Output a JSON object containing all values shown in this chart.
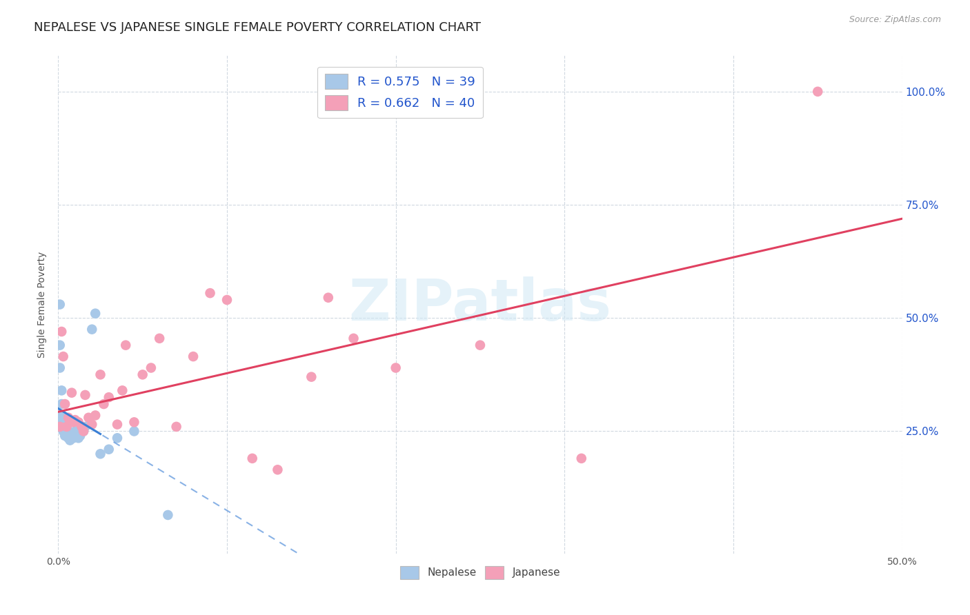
{
  "title": "NEPALESE VS JAPANESE SINGLE FEMALE POVERTY CORRELATION CHART",
  "source": "Source: ZipAtlas.com",
  "ylabel": "Single Female Poverty",
  "xlim": [
    0.0,
    0.5
  ],
  "ylim": [
    -0.02,
    1.08
  ],
  "xtick_major": [
    0.0,
    0.5
  ],
  "xtick_major_labels": [
    "0.0%",
    "50.0%"
  ],
  "xtick_minor": [
    0.1,
    0.2,
    0.3,
    0.4
  ],
  "ytick_values": [
    0.25,
    0.5,
    0.75,
    1.0
  ],
  "ytick_labels": [
    "25.0%",
    "50.0%",
    "75.0%",
    "100.0%"
  ],
  "nepalese_color": "#a8c8e8",
  "japanese_color": "#f4a0b8",
  "nepalese_line_color": "#3a7fd5",
  "japanese_line_color": "#e04060",
  "R_nepalese": 0.575,
  "N_nepalese": 39,
  "R_japanese": 0.662,
  "N_japanese": 40,
  "legend_text_color": "#2255cc",
  "nepalese_x": [
    0.001,
    0.001,
    0.001,
    0.002,
    0.002,
    0.002,
    0.002,
    0.003,
    0.003,
    0.003,
    0.003,
    0.004,
    0.004,
    0.004,
    0.005,
    0.005,
    0.005,
    0.005,
    0.006,
    0.006,
    0.006,
    0.007,
    0.007,
    0.008,
    0.008,
    0.009,
    0.01,
    0.011,
    0.012,
    0.013,
    0.015,
    0.016,
    0.02,
    0.022,
    0.025,
    0.03,
    0.035,
    0.045,
    0.065
  ],
  "nepalese_y": [
    0.53,
    0.44,
    0.39,
    0.34,
    0.31,
    0.285,
    0.27,
    0.265,
    0.28,
    0.27,
    0.25,
    0.255,
    0.245,
    0.24,
    0.26,
    0.27,
    0.255,
    0.25,
    0.245,
    0.24,
    0.235,
    0.24,
    0.23,
    0.235,
    0.245,
    0.235,
    0.25,
    0.245,
    0.235,
    0.24,
    0.25,
    0.26,
    0.475,
    0.51,
    0.2,
    0.21,
    0.235,
    0.25,
    0.065
  ],
  "japanese_x": [
    0.001,
    0.002,
    0.003,
    0.004,
    0.005,
    0.006,
    0.007,
    0.008,
    0.009,
    0.01,
    0.012,
    0.014,
    0.015,
    0.016,
    0.018,
    0.02,
    0.022,
    0.025,
    0.027,
    0.03,
    0.035,
    0.038,
    0.04,
    0.045,
    0.05,
    0.055,
    0.06,
    0.07,
    0.08,
    0.09,
    0.1,
    0.115,
    0.13,
    0.15,
    0.16,
    0.175,
    0.2,
    0.25,
    0.31,
    0.45
  ],
  "japanese_y": [
    0.26,
    0.47,
    0.415,
    0.31,
    0.26,
    0.28,
    0.275,
    0.335,
    0.27,
    0.275,
    0.27,
    0.26,
    0.25,
    0.33,
    0.28,
    0.265,
    0.285,
    0.375,
    0.31,
    0.325,
    0.265,
    0.34,
    0.44,
    0.27,
    0.375,
    0.39,
    0.455,
    0.26,
    0.415,
    0.555,
    0.54,
    0.19,
    0.165,
    0.37,
    0.545,
    0.455,
    0.39,
    0.44,
    0.19,
    1.0
  ],
  "watermark": "ZIPatlas",
  "background_color": "#ffffff",
  "grid_color": "#d0d8e0",
  "title_fontsize": 13,
  "axis_label_fontsize": 10,
  "tick_fontsize": 10,
  "legend_fontsize": 13
}
